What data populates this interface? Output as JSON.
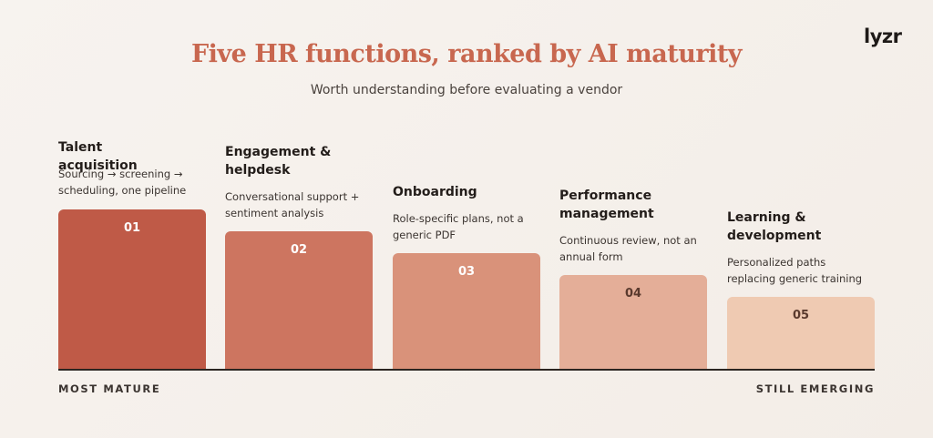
{
  "brand": "lyzr",
  "header": {
    "title": "Five HR functions, ranked by AI maturity",
    "subtitle": "Worth understanding before evaluating a vendor"
  },
  "stages": [
    {
      "number": "01",
      "title": "Talent acquisition",
      "description": "Sourcing → screening → scheduling, one pipeline"
    },
    {
      "number": "02",
      "title": "Engagement & helpdesk",
      "description": "Conversational support + sentiment analysis"
    },
    {
      "number": "03",
      "title": "Onboarding",
      "description": "Role-specific plans, not a generic PDF"
    },
    {
      "number": "04",
      "title": "Performance management",
      "description": "Continuous review, not an annual form"
    },
    {
      "number": "05",
      "title": "Learning & development",
      "description": "Personalized paths replacing generic training"
    }
  ],
  "footer": {
    "left": "MOST MATURE",
    "right": "STILL EMERGING"
  }
}
